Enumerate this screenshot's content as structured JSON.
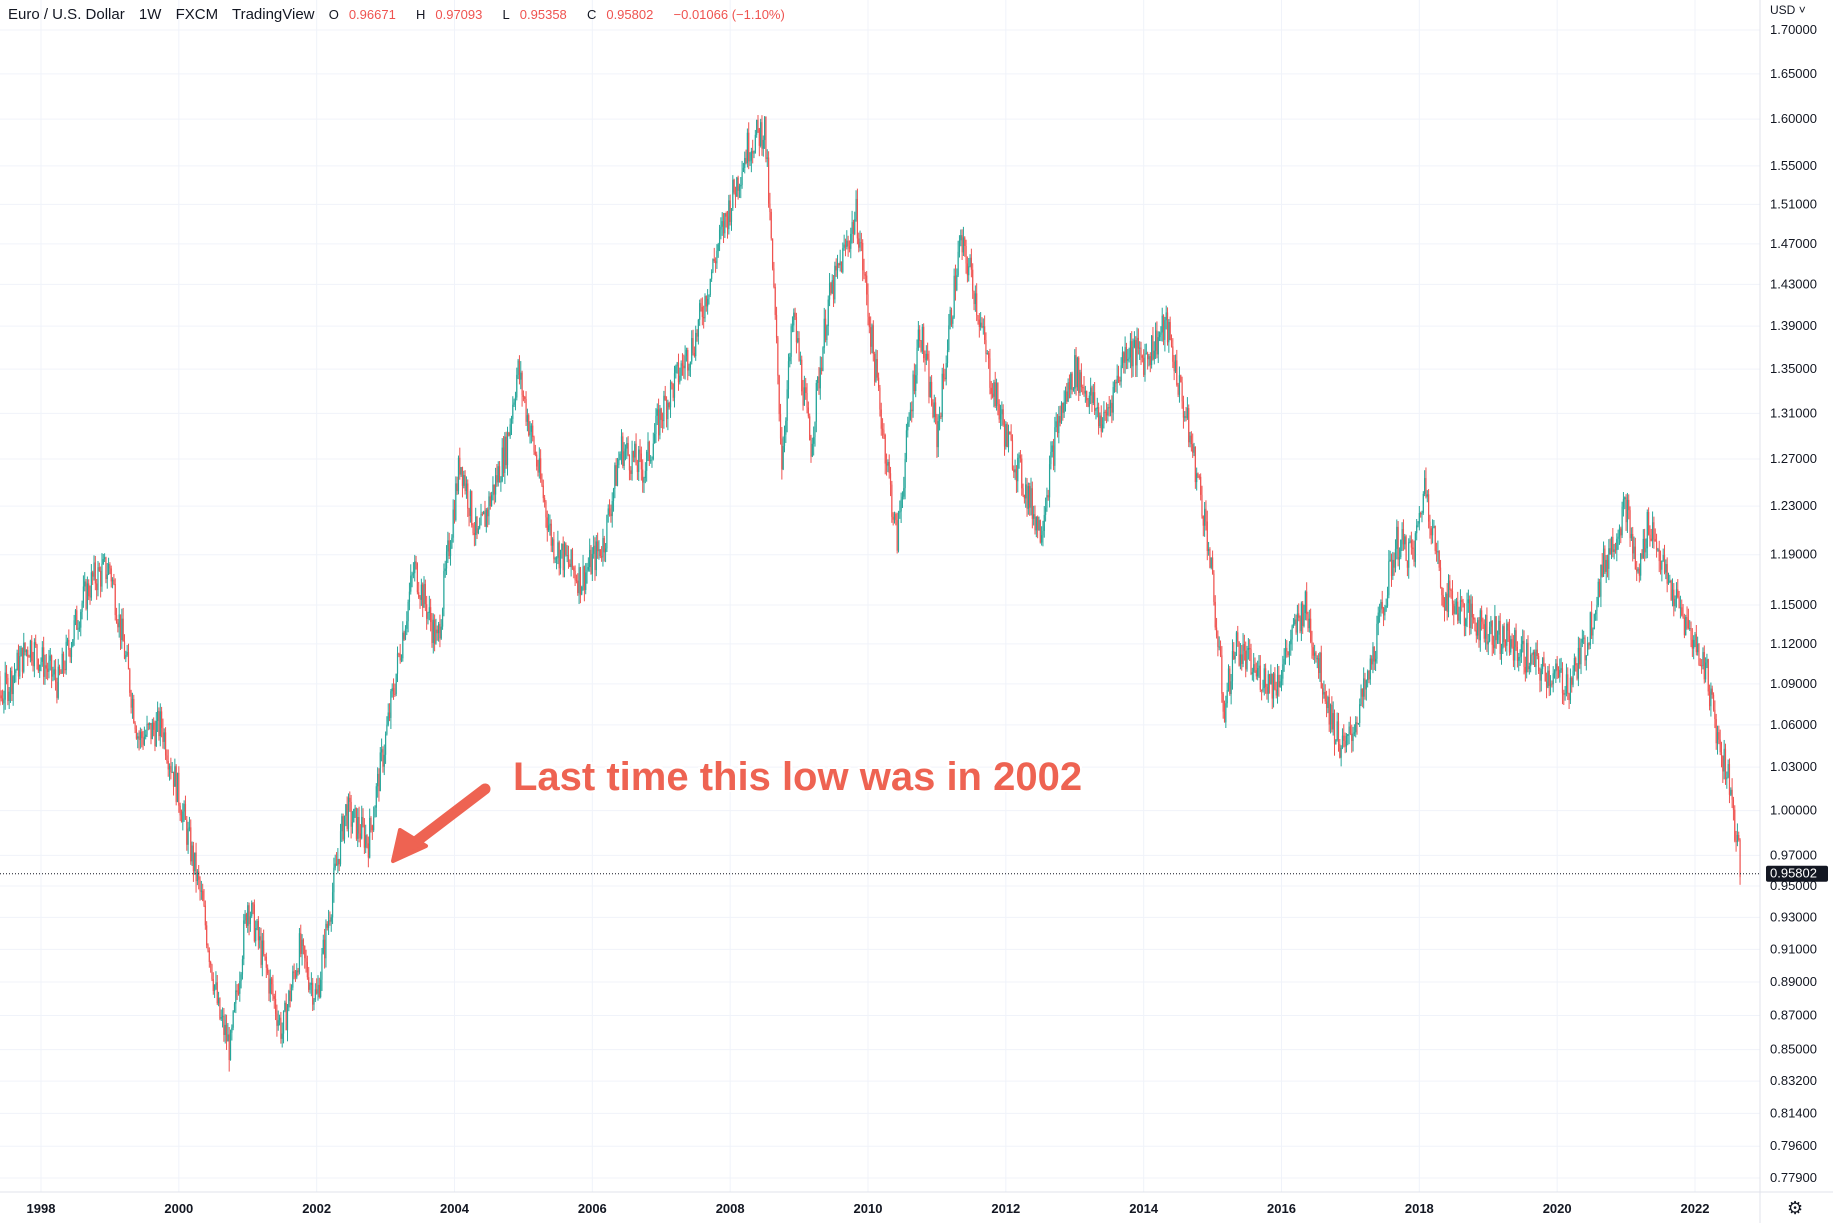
{
  "legend": {
    "symbol": "Euro / U.S. Dollar",
    "interval": "1W",
    "exchange": "FXCM",
    "source": "TradingView",
    "open_key": "O",
    "open": "0.96671",
    "high_key": "H",
    "high": "0.97093",
    "low_key": "L",
    "low": "0.95358",
    "close_key": "C",
    "close": "0.95802",
    "change": "−0.01066 (−1.10%)"
  },
  "currency_label": "USD",
  "currency_menu_icon": "chevron-down-icon",
  "settings_icon": "gear-icon",
  "annotation": "Last time this low was in 2002",
  "colors": {
    "up": "#26a69a",
    "down": "#ef5350",
    "annotation": "#ee6352",
    "grid": "#f0f3fa",
    "axis_text": "#131722",
    "price_tag_bg": "#131722"
  },
  "chart_data": {
    "type": "candlestick",
    "log_scale": true,
    "grid": true,
    "x_tick_labels": [
      "1998",
      "2000",
      "2002",
      "2004",
      "2006",
      "2008",
      "2010",
      "2012",
      "2014",
      "2016",
      "2018",
      "2020",
      "2022"
    ],
    "y_tick_labels": [
      "1.70000",
      "1.65000",
      "1.60000",
      "1.55000",
      "1.51000",
      "1.47000",
      "1.43000",
      "1.39000",
      "1.35000",
      "1.31000",
      "1.27000",
      "1.23000",
      "1.19000",
      "1.15000",
      "1.12000",
      "1.09000",
      "1.06000",
      "1.03000",
      "1.00000",
      "0.97000",
      "0.95000",
      "0.93000",
      "0.91000",
      "0.89000",
      "0.87000",
      "0.85000",
      "0.83200",
      "0.81400",
      "0.79600",
      "0.77900"
    ],
    "ylim": [
      0.77,
      1.72
    ],
    "last_price": "0.95802",
    "series": [
      {
        "x": [
          "1997-01",
          "1997-06",
          "1997-11",
          "1998-04",
          "1998-08",
          "1998-10",
          "1999-01",
          "1999-06",
          "1999-10",
          "2000-01",
          "2000-05",
          "2000-08",
          "2000-10",
          "2001-01",
          "2001-07",
          "2001-10",
          "2002-01",
          "2002-06",
          "2002-10",
          "2003-01",
          "2003-06",
          "2003-10",
          "2004-02",
          "2004-05",
          "2004-10",
          "2004-12",
          "2005-06",
          "2005-11",
          "2006-03",
          "2006-06",
          "2006-10",
          "2007-01",
          "2007-07",
          "2007-11",
          "2008-04",
          "2008-07",
          "2008-10",
          "2008-12",
          "2009-03",
          "2009-06",
          "2009-11",
          "2010-02",
          "2010-06",
          "2010-10",
          "2011-01",
          "2011-05",
          "2011-07",
          "2011-10",
          "2012-01",
          "2012-07",
          "2012-10",
          "2013-01",
          "2013-06",
          "2013-10",
          "2014-01",
          "2014-05",
          "2014-09",
          "2014-12",
          "2015-03",
          "2015-05",
          "2015-08",
          "2015-12",
          "2016-05",
          "2016-10",
          "2016-12",
          "2017-04",
          "2017-09",
          "2017-12",
          "2018-02",
          "2018-05",
          "2018-10",
          "2019-05",
          "2019-10",
          "2020-03",
          "2020-06",
          "2020-09",
          "2021-01",
          "2021-03",
          "2021-05",
          "2021-08",
          "2021-12",
          "2022-03",
          "2022-05",
          "2022-07",
          "2022-09"
        ],
        "y": [
          1.13,
          1.08,
          1.12,
          1.09,
          1.15,
          1.17,
          1.18,
          1.05,
          1.06,
          1.01,
          0.94,
          0.87,
          0.85,
          0.94,
          0.86,
          0.91,
          0.88,
          1.0,
          0.98,
          1.05,
          1.18,
          1.12,
          1.27,
          1.2,
          1.28,
          1.35,
          1.2,
          1.17,
          1.2,
          1.28,
          1.26,
          1.31,
          1.38,
          1.47,
          1.57,
          1.59,
          1.27,
          1.4,
          1.28,
          1.41,
          1.5,
          1.36,
          1.2,
          1.39,
          1.29,
          1.47,
          1.44,
          1.35,
          1.29,
          1.21,
          1.3,
          1.35,
          1.3,
          1.37,
          1.36,
          1.39,
          1.29,
          1.21,
          1.07,
          1.12,
          1.1,
          1.09,
          1.15,
          1.06,
          1.04,
          1.09,
          1.2,
          1.19,
          1.25,
          1.16,
          1.14,
          1.12,
          1.1,
          1.09,
          1.12,
          1.18,
          1.23,
          1.17,
          1.22,
          1.17,
          1.13,
          1.1,
          1.05,
          1.02,
          0.958
        ]
      }
    ]
  }
}
